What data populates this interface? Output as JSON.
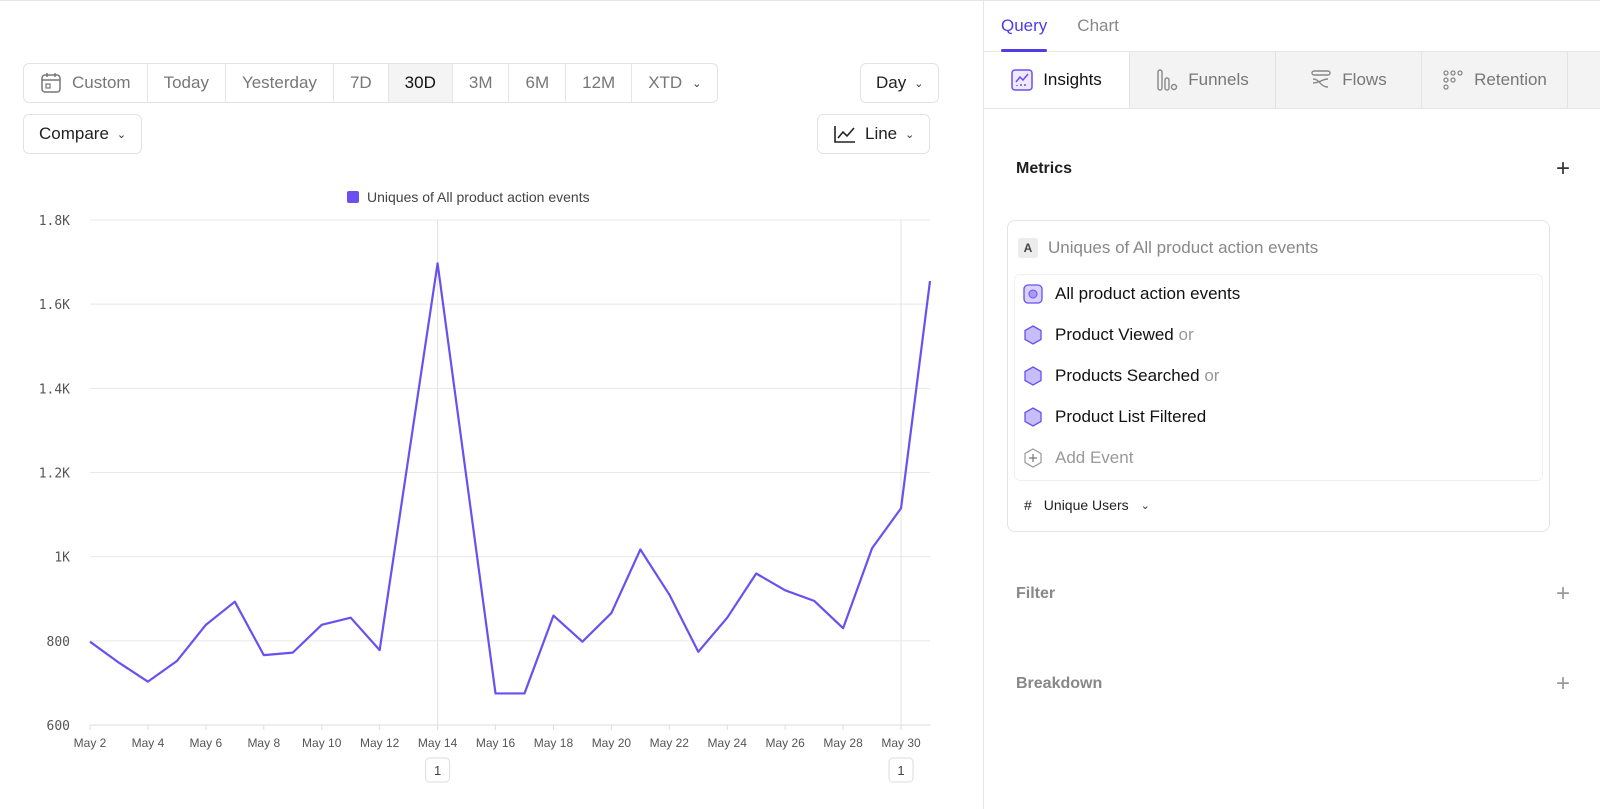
{
  "toolbar": {
    "ranges": [
      "Custom",
      "Today",
      "Yesterday",
      "7D",
      "30D",
      "3M",
      "6M",
      "12M",
      "XTD"
    ],
    "active_range": "30D",
    "interval": "Day",
    "compare": "Compare",
    "chart_type": "Line"
  },
  "panel": {
    "tabs": [
      "Query",
      "Chart"
    ],
    "active_tab": "Query",
    "report_types": [
      "Insights",
      "Funnels",
      "Flows",
      "Retention"
    ],
    "active_report": "Insights",
    "metrics_label": "Metrics",
    "metric": {
      "letter": "A",
      "title": "Uniques of All product action events",
      "events": [
        {
          "name": "All product action events",
          "suffix": ""
        },
        {
          "name": "Product Viewed",
          "suffix": "or"
        },
        {
          "name": "Products Searched",
          "suffix": "or"
        },
        {
          "name": "Product List Filtered",
          "suffix": ""
        }
      ],
      "add_event": "Add Event",
      "measure_symbol": "#",
      "measure": "Unique Users"
    },
    "filter_label": "Filter",
    "breakdown_label": "Breakdown"
  },
  "accent": "#6b4ff0",
  "chart_data": {
    "type": "line",
    "legend": "Uniques of All product action events",
    "legend_placement": "top-center",
    "grid": true,
    "ylim": [
      600,
      1800
    ],
    "yticks": [
      600,
      800,
      1000,
      1200,
      1400,
      1600,
      1800
    ],
    "ytick_labels": [
      "600",
      "800",
      "1K",
      "1.2K",
      "1.4K",
      "1.6K",
      "1.8K"
    ],
    "x": [
      "May 2",
      "May 3",
      "May 4",
      "May 5",
      "May 6",
      "May 7",
      "May 8",
      "May 9",
      "May 10",
      "May 11",
      "May 12",
      "May 13",
      "May 14",
      "May 15",
      "May 16",
      "May 17",
      "May 18",
      "May 19",
      "May 20",
      "May 21",
      "May 22",
      "May 23",
      "May 24",
      "May 25",
      "May 26",
      "May 27",
      "May 28",
      "May 29",
      "May 30",
      "May 31"
    ],
    "xtick_labels": [
      "May 2",
      "May 4",
      "May 6",
      "May 8",
      "May 10",
      "May 12",
      "May 14",
      "May 16",
      "May 18",
      "May 20",
      "May 22",
      "May 24",
      "May 26",
      "May 28",
      "May 30"
    ],
    "values": [
      798,
      748,
      703,
      752,
      838,
      893,
      766,
      772,
      838,
      855,
      778,
      1238,
      1697,
      1186,
      675,
      675,
      860,
      798,
      866,
      1017,
      910,
      774,
      855,
      960,
      920,
      895,
      830,
      1020,
      1115,
      1655
    ],
    "annotations": [
      {
        "x": "May 14",
        "label": "1"
      },
      {
        "x": "May 30",
        "label": "1"
      }
    ]
  }
}
